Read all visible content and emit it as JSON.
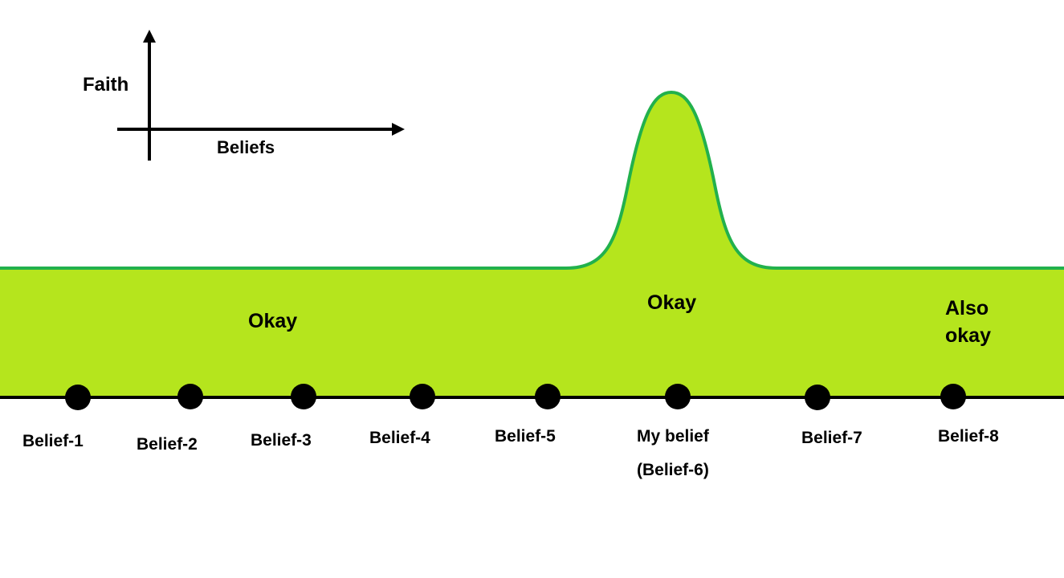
{
  "axes_legend": {
    "y_label": "Faith",
    "x_label": "Beliefs"
  },
  "regions": [
    {
      "id": "left",
      "label": "Okay"
    },
    {
      "id": "peak",
      "label": "Okay"
    },
    {
      "id": "right",
      "label_lines": [
        "Also",
        "okay"
      ]
    }
  ],
  "beliefs": [
    {
      "label_lines": [
        "Belief-1"
      ]
    },
    {
      "label_lines": [
        "Belief-2"
      ]
    },
    {
      "label_lines": [
        "Belief-3"
      ]
    },
    {
      "label_lines": [
        "Belief-4"
      ]
    },
    {
      "label_lines": [
        "Belief-5"
      ]
    },
    {
      "label_lines": [
        "My belief",
        "(Belief-6)"
      ]
    },
    {
      "label_lines": [
        "Belief-7"
      ]
    },
    {
      "label_lines": [
        "Belief-8"
      ]
    }
  ],
  "colors": {
    "fill": "#b5e51d",
    "outline": "#22b14c",
    "line": "#000000"
  }
}
